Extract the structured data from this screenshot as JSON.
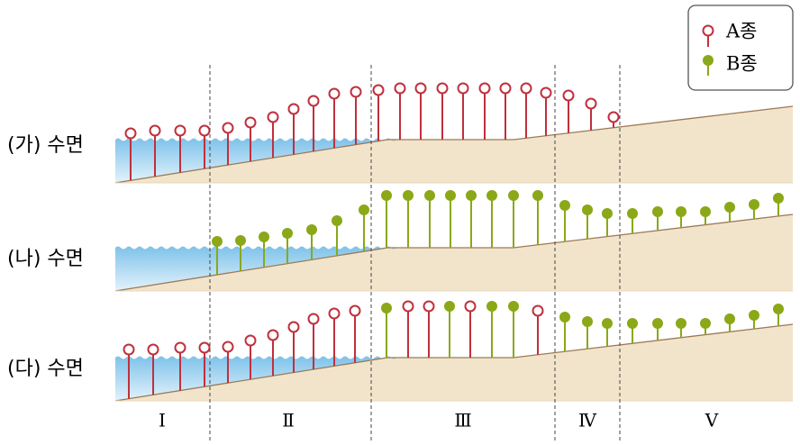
{
  "rows": [
    {
      "label": "(가) 수면"
    },
    {
      "label": "(나) 수면"
    },
    {
      "label": "(다) 수면"
    }
  ],
  "legend": {
    "a": "A종",
    "b": "B종"
  },
  "zones": [
    "Ⅰ",
    "Ⅱ",
    "Ⅲ",
    "Ⅳ",
    "Ⅴ"
  ]
}
